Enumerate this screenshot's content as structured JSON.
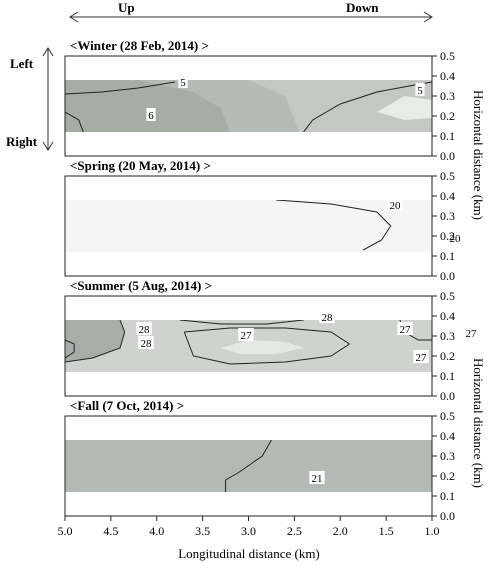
{
  "chart_data": {
    "type": "contour",
    "direction": {
      "up": "Up",
      "down": "Down",
      "left": "Left",
      "right": "Right"
    },
    "xlabel": "Longitudinal distance (km)",
    "ylabel": "Horizontal distance (km)",
    "x_ticks": [
      "5.0",
      "4.5",
      "4.0",
      "3.5",
      "3.0",
      "2.5",
      "2.0",
      "1.5",
      "1.0"
    ],
    "y_ticks": [
      "0.0",
      "0.1",
      "0.2",
      "0.3",
      "0.4",
      "0.5"
    ],
    "xlim": [
      5.0,
      1.0
    ],
    "ylim": [
      0,
      0.5
    ],
    "panels": [
      {
        "title": "<Winter (28 Feb, 2014) >",
        "contour_labels": [
          "5",
          "5",
          "6"
        ],
        "contours": [
          {
            "label": "5",
            "points": [
              [
                5.0,
                0.31
              ],
              [
                4.6,
                0.32
              ],
              [
                4.2,
                0.34
              ],
              [
                3.8,
                0.37
              ]
            ]
          },
          {
            "label": "5",
            "points": [
              [
                2.4,
                0.12
              ],
              [
                2.3,
                0.18
              ],
              [
                2.0,
                0.26
              ],
              [
                1.6,
                0.32
              ],
              [
                1.25,
                0.35
              ],
              [
                1.0,
                0.37
              ]
            ]
          },
          {
            "label": "6",
            "points": [
              [
                5.0,
                0.22
              ],
              [
                4.85,
                0.18
              ],
              [
                4.8,
                0.12
              ]
            ]
          }
        ],
        "bands": [
          {
            "shade": "#a7aca7",
            "points": [
              [
                5.0,
                0.12
              ],
              [
                5.0,
                0.38
              ],
              [
                4.2,
                0.38
              ],
              [
                3.6,
                0.32
              ],
              [
                3.3,
                0.24
              ],
              [
                3.2,
                0.12
              ]
            ]
          },
          {
            "shade": "#b7bbb7",
            "points": [
              [
                3.2,
                0.12
              ],
              [
                3.3,
                0.24
              ],
              [
                3.6,
                0.32
              ],
              [
                4.2,
                0.38
              ],
              [
                3.0,
                0.38
              ],
              [
                2.6,
                0.3
              ],
              [
                2.45,
                0.12
              ]
            ]
          },
          {
            "shade": "#e9ebe9",
            "points": [
              [
                1.6,
                0.22
              ],
              [
                1.3,
                0.18
              ],
              [
                1.0,
                0.19
              ],
              [
                1.0,
                0.28
              ],
              [
                1.3,
                0.3
              ]
            ]
          }
        ]
      },
      {
        "title": "<Spring (20 May, 2014) >",
        "contour_labels": [
          "20",
          "20"
        ],
        "contours": [
          {
            "label": "20",
            "points": [
              [
                2.7,
                0.38
              ],
              [
                2.1,
                0.36
              ],
              [
                1.6,
                0.32
              ],
              [
                1.45,
                0.25
              ],
              [
                1.55,
                0.18
              ],
              [
                1.75,
                0.13
              ]
            ]
          }
        ],
        "bands": []
      },
      {
        "title": "<Summer (5 Aug, 2014) >",
        "contour_labels": [
          "28",
          "28",
          "27",
          "28",
          "27",
          "27",
          "27"
        ],
        "contours": [
          {
            "label": "28",
            "points": [
              [
                5.0,
                0.28
              ],
              [
                4.9,
                0.26
              ],
              [
                4.9,
                0.22
              ],
              [
                5.0,
                0.19
              ]
            ]
          },
          {
            "label": "27",
            "points": [
              [
                4.4,
                0.38
              ],
              [
                4.35,
                0.32
              ],
              [
                4.4,
                0.24
              ],
              [
                4.7,
                0.19
              ],
              [
                5.0,
                0.17
              ]
            ]
          },
          {
            "label": "28",
            "points": [
              [
                3.75,
                0.38
              ],
              [
                3.3,
                0.36
              ],
              [
                2.8,
                0.36
              ],
              [
                2.4,
                0.38
              ]
            ]
          },
          {
            "label": "27",
            "points": [
              [
                3.7,
                0.32
              ],
              [
                3.2,
                0.34
              ],
              [
                2.6,
                0.34
              ],
              [
                2.1,
                0.32
              ],
              [
                1.9,
                0.26
              ],
              [
                2.1,
                0.2
              ],
              [
                2.6,
                0.17
              ],
              [
                3.2,
                0.16
              ],
              [
                3.6,
                0.2
              ],
              [
                3.7,
                0.32
              ]
            ]
          },
          {
            "label": "27",
            "points": [
              [
                1.35,
                0.38
              ],
              [
                1.3,
                0.32
              ],
              [
                1.15,
                0.28
              ],
              [
                1.0,
                0.28
              ]
            ]
          }
        ],
        "bands": [
          {
            "shade": "#a9ada9",
            "points": [
              [
                5.0,
                0.12
              ],
              [
                5.0,
                0.38
              ],
              [
                4.4,
                0.38
              ],
              [
                4.35,
                0.32
              ],
              [
                4.4,
                0.24
              ],
              [
                4.7,
                0.19
              ],
              [
                5.0,
                0.17
              ]
            ]
          },
          {
            "shade": "#e6e8e6",
            "points": [
              [
                3.3,
                0.24
              ],
              [
                3.0,
                0.28
              ],
              [
                2.6,
                0.27
              ],
              [
                2.4,
                0.24
              ],
              [
                2.7,
                0.21
              ],
              [
                3.1,
                0.21
              ]
            ]
          }
        ]
      },
      {
        "title": "<Fall (7 Oct, 2014) >",
        "contour_labels": [
          "21"
        ],
        "contours": [
          {
            "label": "21",
            "points": [
              [
                2.75,
                0.38
              ],
              [
                2.85,
                0.3
              ],
              [
                3.1,
                0.22
              ],
              [
                3.25,
                0.18
              ],
              [
                3.25,
                0.12
              ]
            ]
          }
        ],
        "bands": []
      }
    ]
  }
}
